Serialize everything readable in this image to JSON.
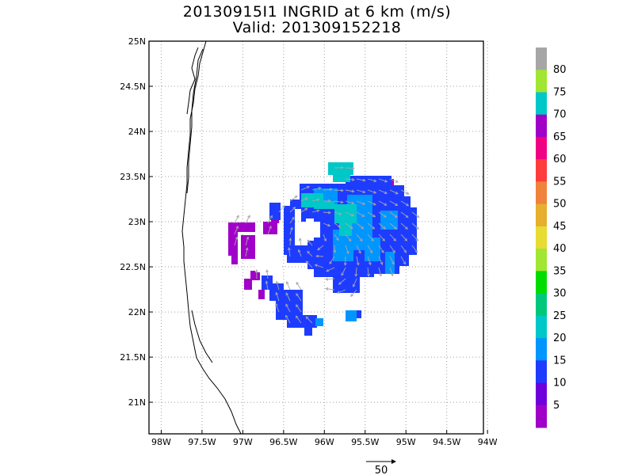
{
  "title": {
    "line1": "20130915I1 INGRID at 6 km (m/s)",
    "line2": "Valid: 201309152218"
  },
  "axes": {
    "x_ticks": [
      "98W",
      "97.5W",
      "97W",
      "96.5W",
      "96W",
      "95.5W",
      "95W",
      "94.5W",
      "94W"
    ],
    "x_values": [
      -98,
      -97.5,
      -97,
      -96.5,
      -96,
      -95.5,
      -95,
      -94.5,
      -94
    ],
    "y_ticks": [
      "25N",
      "24.5N",
      "24N",
      "23.5N",
      "23N",
      "22.5N",
      "22N",
      "21.5N",
      "21N"
    ],
    "y_values": [
      25,
      24.5,
      24,
      23.5,
      23,
      22.5,
      22,
      21.5,
      21
    ],
    "xlim": [
      -98.15,
      -94.05
    ],
    "ylim": [
      20.65,
      25.0
    ],
    "grid": true
  },
  "colorbar": {
    "labels": [
      "80",
      "75",
      "70",
      "65",
      "60",
      "55",
      "50",
      "45",
      "40",
      "35",
      "30",
      "25",
      "20",
      "15",
      "10",
      "5"
    ],
    "colors": [
      "#a6a6a6",
      "#a0e632",
      "#00c8c8",
      "#a000c8",
      "#f00082",
      "#ff3c3c",
      "#f0823c",
      "#e6af2d",
      "#e6dc32",
      "#a0e632",
      "#00dc00",
      "#00c87a",
      "#00c8c8",
      "#0096ff",
      "#1e3cff",
      "#6e00dc",
      "#a000c8"
    ]
  },
  "reference_vector": {
    "label": "50"
  },
  "colors": {
    "purple": "#a000c8",
    "blue": "#1e3cff",
    "lightblue": "#0096ff",
    "teal": "#00c8c8",
    "arrow": "#a6a6a6"
  }
}
